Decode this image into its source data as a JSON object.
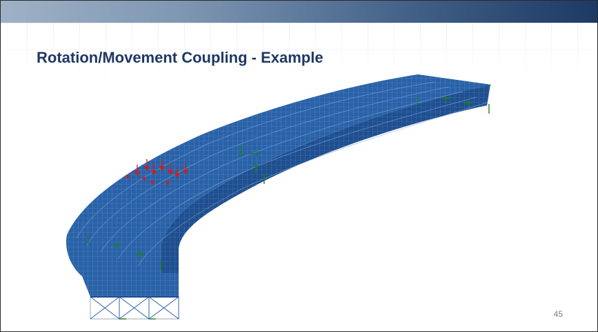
{
  "slide": {
    "title": "Rotation/Movement Coupling - Example",
    "page_number": "45"
  },
  "figure": {
    "description_icon": "curved-bridge-fe-model",
    "deck_color": "#2a62a8",
    "mesh_color": "#6d97cf",
    "load_arrow_color": "#d11c1c",
    "support_color": "#1d7f1d"
  },
  "theme": {
    "title_color": "#1f3864",
    "header_bar_color": "#1c3a63"
  }
}
